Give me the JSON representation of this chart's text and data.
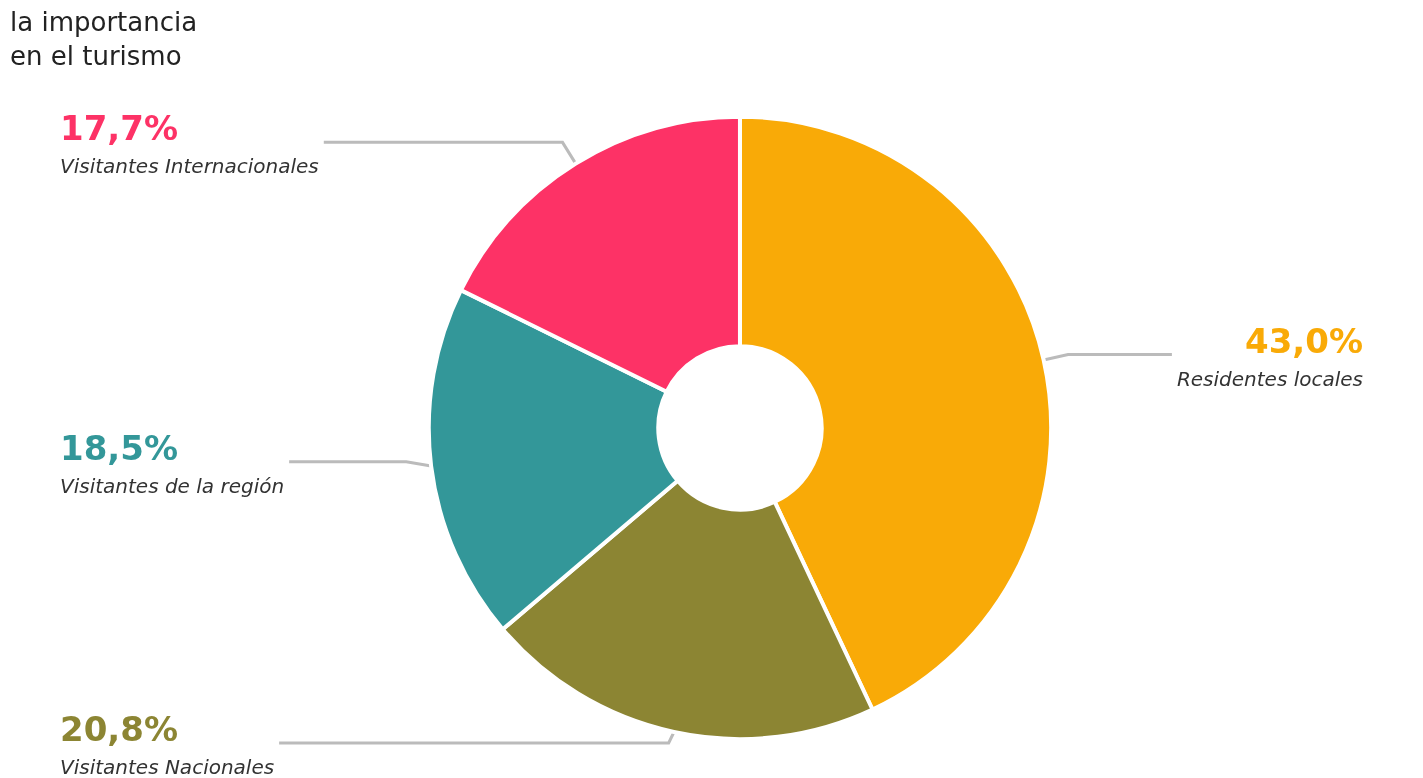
{
  "chart_data": {
    "type": "donut",
    "categories": [
      "Residentes locales",
      "Visitantes Nacionales",
      "Visitantes de la región",
      "Visitantes Internacionales"
    ],
    "values": [
      43.0,
      20.8,
      18.5,
      17.7
    ],
    "colors": [
      "#f9aa07",
      "#8c8533",
      "#339799",
      "#fd3266"
    ],
    "value_labels": [
      "43,0%",
      "20,8%",
      "18,5%",
      "17,7%"
    ],
    "annotations": [
      "la importancia\nen el turismo"
    ]
  }
}
